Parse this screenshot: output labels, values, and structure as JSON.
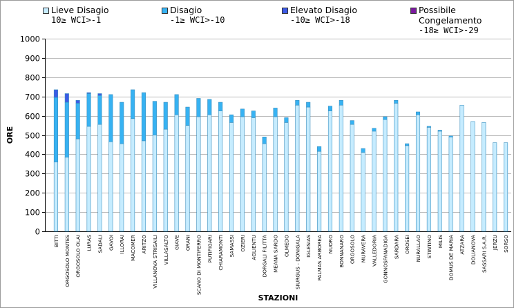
{
  "colors": {
    "lieve": "#c6ecff",
    "disagio": "#37b2f2",
    "elevato": "#3c5ae6",
    "congelamento": "#7a1a9e",
    "grid": "#b9b9b9",
    "axis": "#000000",
    "bar_outline": "#3a8fbf"
  },
  "legend": [
    {
      "name": "Lieve Disagio",
      "range": "10≥ WCI>-1"
    },
    {
      "name": "Disagio",
      "range": "-1≥ WCI>-10"
    },
    {
      "name": "Elevato Disagio",
      "range": "-10≥ WCI>-18"
    },
    {
      "name": "Possibile Congelamento",
      "name_line1": "Possibile",
      "name_line2": "Congelamento",
      "range": "-18≥ WCI>-29"
    }
  ],
  "chart_data": {
    "type": "bar",
    "stacked": true,
    "title": "",
    "xlabel": "STAZIONI",
    "ylabel": "ORE",
    "ylim": [
      0,
      1000
    ],
    "yticks": [
      0,
      100,
      200,
      300,
      400,
      500,
      600,
      700,
      800,
      900,
      1000
    ],
    "grid": true,
    "legend_position": "top",
    "categories": [
      "BITTI",
      "ORGOSOLO MONTES",
      "ORGOSOLO OLAI",
      "LURAS",
      "SADALI",
      "GAVOI",
      "ILLORAI",
      "MACOMER",
      "ARITZO",
      "VILLANOVA STRISAILI",
      "VILLASALTO",
      "GIAVE",
      "ORANI",
      "SCANO DI MONTIFERRO",
      "PUTIFIGARI",
      "CHIARAMONTI",
      "SAMASSI",
      "OZIERI",
      "AGLIENTU",
      "DORGALI FILITTA",
      "MEANA SARDO",
      "OLMEDO",
      "SIURGUS - DONIGALA",
      "IGLESIAS",
      "PALMAS ARBOREA",
      "NUORO",
      "BONNANARO",
      "ORGOSOLO",
      "MURAVERA",
      "VALLEDORIA",
      "GONNOSFANADIGA",
      "SARDARA",
      "OROSEI",
      "NURALLAO",
      "STINTINO",
      "MILIS",
      "DOMUS DE MARIA",
      "ATZARA",
      "DOLIANOVA",
      "SASSARI S.A.R.",
      "JERZU",
      "SORSO"
    ],
    "series": [
      {
        "name": "Lieve Disagio",
        "values": [
          360,
          385,
          480,
          545,
          555,
          465,
          455,
          585,
          470,
          500,
          530,
          605,
          550,
          595,
          605,
          625,
          565,
          595,
          590,
          455,
          595,
          565,
          655,
          645,
          415,
          625,
          655,
          555,
          410,
          520,
          580,
          665,
          445,
          605,
          540,
          520,
          490,
          655,
          570,
          565,
          460,
          460
        ]
      },
      {
        "name": "Disagio",
        "values": [
          335,
          285,
          185,
          170,
          150,
          245,
          215,
          150,
          250,
          175,
          140,
          105,
          95,
          95,
          80,
          45,
          40,
          40,
          35,
          35,
          45,
          25,
          25,
          25,
          25,
          25,
          25,
          20,
          20,
          15,
          15,
          15,
          10,
          15,
          5,
          5,
          5,
          0,
          0,
          0,
          0,
          0
        ]
      },
      {
        "name": "Elevato Disagio",
        "values": [
          40,
          45,
          15,
          5,
          10,
          0,
          0,
          0,
          0,
          0,
          0,
          0,
          0,
          0,
          0,
          0,
          0,
          0,
          0,
          0,
          0,
          0,
          0,
          0,
          0,
          0,
          0,
          0,
          0,
          0,
          0,
          0,
          0,
          0,
          0,
          0,
          0,
          0,
          0,
          0,
          0,
          0
        ]
      },
      {
        "name": "Possibile Congelamento",
        "values": [
          0,
          0,
          0,
          0,
          0,
          0,
          0,
          0,
          0,
          0,
          0,
          0,
          0,
          0,
          0,
          0,
          0,
          0,
          0,
          0,
          0,
          0,
          0,
          0,
          0,
          0,
          0,
          0,
          0,
          0,
          0,
          0,
          0,
          0,
          0,
          0,
          0,
          0,
          0,
          0,
          0,
          0
        ]
      }
    ]
  }
}
